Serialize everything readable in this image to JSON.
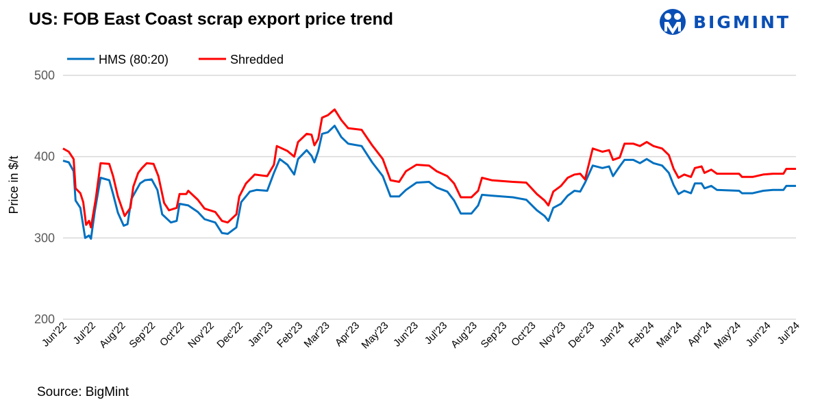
{
  "brand": {
    "name": "BIGMINT",
    "color": "#0a4fb5"
  },
  "source": "Source: BigMint",
  "chart_data": {
    "type": "line",
    "title": "US: FOB East Coast scrap export price trend",
    "xlabel": "",
    "ylabel": "Price in $/t",
    "ylim": [
      200,
      500
    ],
    "y_ticks": [
      "200",
      "300",
      "400",
      "500"
    ],
    "xlim": [
      "2022-06-01",
      "2024-07-01"
    ],
    "x_ticks": [
      {
        "date": "2022-06-01",
        "label": "Jun'22"
      },
      {
        "date": "2022-07-01",
        "label": "Jul'22"
      },
      {
        "date": "2022-08-01",
        "label": "Aug'22"
      },
      {
        "date": "2022-09-01",
        "label": "Sep'22"
      },
      {
        "date": "2022-10-01",
        "label": "Oct'22"
      },
      {
        "date": "2022-11-01",
        "label": "Nov'22"
      },
      {
        "date": "2022-12-01",
        "label": "Dec'22"
      },
      {
        "date": "2023-01-01",
        "label": "Jan'23"
      },
      {
        "date": "2023-02-01",
        "label": "Feb'23"
      },
      {
        "date": "2023-03-01",
        "label": "Mar'23"
      },
      {
        "date": "2023-04-01",
        "label": "Apr'23"
      },
      {
        "date": "2023-05-01",
        "label": "May'23"
      },
      {
        "date": "2023-06-01",
        "label": "Jun'23"
      },
      {
        "date": "2023-07-01",
        "label": "Jul'23"
      },
      {
        "date": "2023-08-01",
        "label": "Aug'23"
      },
      {
        "date": "2023-09-01",
        "label": "Sep'23"
      },
      {
        "date": "2023-10-01",
        "label": "Oct'23"
      },
      {
        "date": "2023-11-01",
        "label": "Nov'23"
      },
      {
        "date": "2023-12-01",
        "label": "Dec'23"
      },
      {
        "date": "2024-01-01",
        "label": "Jan'24"
      },
      {
        "date": "2024-02-01",
        "label": "Feb'24"
      },
      {
        "date": "2024-03-01",
        "label": "Mar'24"
      },
      {
        "date": "2024-04-01",
        "label": "Apr'24"
      },
      {
        "date": "2024-05-01",
        "label": "May'24"
      },
      {
        "date": "2024-06-01",
        "label": "Jun'24"
      },
      {
        "date": "2024-07-01",
        "label": "Jul'24"
      }
    ],
    "grid": true,
    "legend": "top-left",
    "series": [
      {
        "name": "HMS (80:20)",
        "color": "#0070c0",
        "points": [
          [
            "2022-06-01",
            395
          ],
          [
            "2022-06-07",
            393
          ],
          [
            "2022-06-12",
            382
          ],
          [
            "2022-06-14",
            346
          ],
          [
            "2022-06-19",
            337
          ],
          [
            "2022-06-24",
            300
          ],
          [
            "2022-06-28",
            303
          ],
          [
            "2022-06-30",
            299
          ],
          [
            "2022-07-04",
            333
          ],
          [
            "2022-07-10",
            374
          ],
          [
            "2022-07-19",
            371
          ],
          [
            "2022-07-23",
            354
          ],
          [
            "2022-07-28",
            331
          ],
          [
            "2022-08-03",
            315
          ],
          [
            "2022-08-07",
            317
          ],
          [
            "2022-08-11",
            348
          ],
          [
            "2022-08-20",
            367
          ],
          [
            "2022-08-25",
            371
          ],
          [
            "2022-09-01",
            372
          ],
          [
            "2022-09-07",
            359
          ],
          [
            "2022-09-12",
            329
          ],
          [
            "2022-09-21",
            319
          ],
          [
            "2022-09-27",
            321
          ],
          [
            "2022-09-30",
            342
          ],
          [
            "2022-10-09",
            340
          ],
          [
            "2022-10-19",
            332
          ],
          [
            "2022-10-26",
            323
          ],
          [
            "2022-11-06",
            319
          ],
          [
            "2022-11-13",
            306
          ],
          [
            "2022-11-19",
            305
          ],
          [
            "2022-11-28",
            313
          ],
          [
            "2022-12-03",
            344
          ],
          [
            "2022-12-12",
            357
          ],
          [
            "2022-12-19",
            359
          ],
          [
            "2022-12-30",
            358
          ],
          [
            "2023-01-06",
            380
          ],
          [
            "2023-01-12",
            397
          ],
          [
            "2023-01-20",
            390
          ],
          [
            "2023-01-27",
            378
          ],
          [
            "2023-01-31",
            397
          ],
          [
            "2023-02-09",
            408
          ],
          [
            "2023-02-14",
            401
          ],
          [
            "2023-02-17",
            393
          ],
          [
            "2023-02-21",
            407
          ],
          [
            "2023-02-25",
            428
          ],
          [
            "2023-03-03",
            430
          ],
          [
            "2023-03-10",
            438
          ],
          [
            "2023-03-17",
            424
          ],
          [
            "2023-03-24",
            416
          ],
          [
            "2023-04-07",
            413
          ],
          [
            "2023-04-18",
            393
          ],
          [
            "2023-04-29",
            376
          ],
          [
            "2023-05-07",
            351
          ],
          [
            "2023-05-16",
            351
          ],
          [
            "2023-05-23",
            359
          ],
          [
            "2023-06-03",
            368
          ],
          [
            "2023-06-16",
            369
          ],
          [
            "2023-06-24",
            362
          ],
          [
            "2023-07-05",
            357
          ],
          [
            "2023-07-12",
            346
          ],
          [
            "2023-07-19",
            330
          ],
          [
            "2023-07-30",
            330
          ],
          [
            "2023-08-06",
            340
          ],
          [
            "2023-08-10",
            353
          ],
          [
            "2023-08-20",
            352
          ],
          [
            "2023-09-11",
            350
          ],
          [
            "2023-09-25",
            347
          ],
          [
            "2023-10-06",
            334
          ],
          [
            "2023-10-14",
            327
          ],
          [
            "2023-10-18",
            321
          ],
          [
            "2023-10-23",
            337
          ],
          [
            "2023-10-31",
            342
          ],
          [
            "2023-11-07",
            352
          ],
          [
            "2023-11-14",
            358
          ],
          [
            "2023-11-20",
            357
          ],
          [
            "2023-11-25",
            368
          ],
          [
            "2023-12-03",
            389
          ],
          [
            "2023-12-13",
            386
          ],
          [
            "2023-12-20",
            388
          ],
          [
            "2023-12-24",
            376
          ],
          [
            "2023-12-31",
            388
          ],
          [
            "2024-01-05",
            396
          ],
          [
            "2024-01-14",
            396
          ],
          [
            "2024-01-21",
            392
          ],
          [
            "2024-01-28",
            397
          ],
          [
            "2024-02-04",
            392
          ],
          [
            "2024-02-13",
            389
          ],
          [
            "2024-02-20",
            380
          ],
          [
            "2024-02-25",
            365
          ],
          [
            "2024-03-01",
            354
          ],
          [
            "2024-03-07",
            358
          ],
          [
            "2024-03-14",
            355
          ],
          [
            "2024-03-18",
            367
          ],
          [
            "2024-03-25",
            367
          ],
          [
            "2024-03-28",
            361
          ],
          [
            "2024-04-04",
            364
          ],
          [
            "2024-04-10",
            359
          ],
          [
            "2024-05-03",
            358
          ],
          [
            "2024-05-06",
            355
          ],
          [
            "2024-05-17",
            355
          ],
          [
            "2024-05-28",
            358
          ],
          [
            "2024-06-07",
            359
          ],
          [
            "2024-06-18",
            359
          ],
          [
            "2024-06-21",
            364
          ],
          [
            "2024-07-01",
            364
          ]
        ]
      },
      {
        "name": "Shredded",
        "color": "#ff0000",
        "points": [
          [
            "2022-06-01",
            410
          ],
          [
            "2022-06-07",
            406
          ],
          [
            "2022-06-12",
            397
          ],
          [
            "2022-06-14",
            361
          ],
          [
            "2022-06-19",
            355
          ],
          [
            "2022-06-22",
            344
          ],
          [
            "2022-06-25",
            316
          ],
          [
            "2022-06-28",
            321
          ],
          [
            "2022-06-30",
            313
          ],
          [
            "2022-07-05",
            348
          ],
          [
            "2022-07-10",
            392
          ],
          [
            "2022-07-19",
            391
          ],
          [
            "2022-07-23",
            376
          ],
          [
            "2022-07-28",
            351
          ],
          [
            "2022-08-04",
            327
          ],
          [
            "2022-08-10",
            337
          ],
          [
            "2022-08-13",
            363
          ],
          [
            "2022-08-18",
            380
          ],
          [
            "2022-08-22",
            386
          ],
          [
            "2022-08-27",
            392
          ],
          [
            "2022-09-03",
            391
          ],
          [
            "2022-09-08",
            376
          ],
          [
            "2022-09-14",
            343
          ],
          [
            "2022-09-19",
            334
          ],
          [
            "2022-09-27",
            337
          ],
          [
            "2022-09-30",
            354
          ],
          [
            "2022-10-07",
            354
          ],
          [
            "2022-10-09",
            358
          ],
          [
            "2022-10-19",
            347
          ],
          [
            "2022-10-26",
            336
          ],
          [
            "2022-11-06",
            332
          ],
          [
            "2022-11-13",
            321
          ],
          [
            "2022-11-19",
            319
          ],
          [
            "2022-11-28",
            329
          ],
          [
            "2022-12-01",
            351
          ],
          [
            "2022-12-08",
            367
          ],
          [
            "2022-12-17",
            378
          ],
          [
            "2022-12-30",
            376
          ],
          [
            "2023-01-06",
            390
          ],
          [
            "2023-01-09",
            413
          ],
          [
            "2023-01-20",
            407
          ],
          [
            "2023-01-27",
            400
          ],
          [
            "2023-01-31",
            418
          ],
          [
            "2023-02-09",
            428
          ],
          [
            "2023-02-14",
            427
          ],
          [
            "2023-02-17",
            414
          ],
          [
            "2023-02-21",
            422
          ],
          [
            "2023-02-25",
            448
          ],
          [
            "2023-03-03",
            451
          ],
          [
            "2023-03-10",
            458
          ],
          [
            "2023-03-17",
            445
          ],
          [
            "2023-03-24",
            435
          ],
          [
            "2023-04-07",
            433
          ],
          [
            "2023-04-18",
            414
          ],
          [
            "2023-04-29",
            397
          ],
          [
            "2023-05-07",
            371
          ],
          [
            "2023-05-16",
            369
          ],
          [
            "2023-05-23",
            382
          ],
          [
            "2023-06-03",
            390
          ],
          [
            "2023-06-16",
            389
          ],
          [
            "2023-06-24",
            382
          ],
          [
            "2023-07-05",
            376
          ],
          [
            "2023-07-12",
            367
          ],
          [
            "2023-07-19",
            350
          ],
          [
            "2023-07-30",
            350
          ],
          [
            "2023-08-06",
            358
          ],
          [
            "2023-08-10",
            374
          ],
          [
            "2023-08-20",
            371
          ],
          [
            "2023-09-11",
            369
          ],
          [
            "2023-09-25",
            368
          ],
          [
            "2023-10-06",
            354
          ],
          [
            "2023-10-14",
            346
          ],
          [
            "2023-10-18",
            340
          ],
          [
            "2023-10-23",
            357
          ],
          [
            "2023-10-31",
            364
          ],
          [
            "2023-11-07",
            374
          ],
          [
            "2023-11-14",
            378
          ],
          [
            "2023-11-20",
            379
          ],
          [
            "2023-11-25",
            372
          ],
          [
            "2023-12-03",
            410
          ],
          [
            "2023-12-13",
            406
          ],
          [
            "2023-12-20",
            408
          ],
          [
            "2023-12-24",
            396
          ],
          [
            "2023-12-31",
            399
          ],
          [
            "2024-01-05",
            416
          ],
          [
            "2024-01-14",
            416
          ],
          [
            "2024-01-21",
            413
          ],
          [
            "2024-01-28",
            418
          ],
          [
            "2024-02-04",
            413
          ],
          [
            "2024-02-13",
            410
          ],
          [
            "2024-02-20",
            402
          ],
          [
            "2024-02-25",
            385
          ],
          [
            "2024-03-01",
            374
          ],
          [
            "2024-03-07",
            378
          ],
          [
            "2024-03-14",
            375
          ],
          [
            "2024-03-18",
            386
          ],
          [
            "2024-03-25",
            388
          ],
          [
            "2024-03-28",
            380
          ],
          [
            "2024-04-04",
            384
          ],
          [
            "2024-04-10",
            379
          ],
          [
            "2024-05-03",
            379
          ],
          [
            "2024-05-06",
            375
          ],
          [
            "2024-05-17",
            375
          ],
          [
            "2024-05-28",
            378
          ],
          [
            "2024-06-07",
            379
          ],
          [
            "2024-06-18",
            379
          ],
          [
            "2024-06-21",
            385
          ],
          [
            "2024-07-01",
            385
          ]
        ]
      }
    ]
  }
}
